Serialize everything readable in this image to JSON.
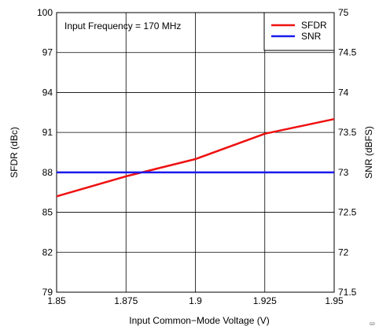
{
  "chart_data": {
    "type": "line",
    "annotation": "Input Frequency = 170 MHz",
    "xlabel": "Input Common−Mode Voltage (V)",
    "ylabel_left": "SFDR (dBc)",
    "ylabel_right": "SNR (dBFS)",
    "x_ticks": [
      "1.85",
      "1.875",
      "1.9",
      "1.925",
      "1.95"
    ],
    "y_left_ticks": [
      "79",
      "82",
      "85",
      "88",
      "91",
      "94",
      "97",
      "100"
    ],
    "y_right_ticks": [
      "71.5",
      "72",
      "72.5",
      "73",
      "73.5",
      "74",
      "74.5",
      "75"
    ],
    "xlim": [
      1.85,
      1.95
    ],
    "ylim_left": [
      79,
      100
    ],
    "ylim_right": [
      71.5,
      75
    ],
    "grid": true,
    "legend_placement": "top-right",
    "series": [
      {
        "name": "SFDR",
        "axis": "left",
        "color": "#ee1111",
        "x": [
          1.85,
          1.875,
          1.9,
          1.925,
          1.95
        ],
        "y": [
          86.2,
          87.7,
          89.0,
          90.9,
          92.0
        ]
      },
      {
        "name": "SNR",
        "axis": "right",
        "color": "#1a1aee",
        "x": [
          1.85,
          1.875,
          1.9,
          1.925,
          1.95
        ],
        "y": [
          73.0,
          73.0,
          73.0,
          73.0,
          73.0
        ]
      }
    ],
    "footer_code": "G0"
  }
}
